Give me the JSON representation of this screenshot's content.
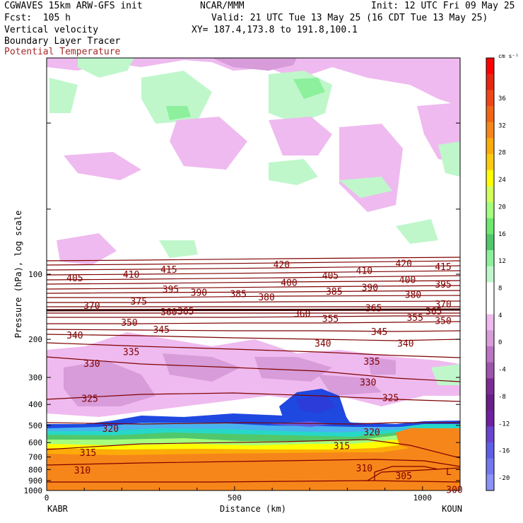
{
  "header": {
    "model": "CGWAVES 15km ARW-GFS init",
    "org": "NCAR/MMM",
    "init": "Init: 12 UTC Fri 09 May 25",
    "fcst": "Fcst:  105 h",
    "valid": "Valid: 21 UTC Tue 13 May 25 (16 CDT Tue 13 May 25)",
    "field1": "Vertical velocity",
    "xy": "XY= 187.4,173.8 to 191.8,100.1",
    "field2": "Boundary Layer Tracer",
    "field3": "Potential Temperature"
  },
  "chart_data": {
    "type": "contour cross-section",
    "ylabel": "Pressure (hPa), log scale",
    "xlabel": "Distance (km)",
    "x_ticks": [
      0,
      500,
      1000
    ],
    "xlim": [
      0,
      1100
    ],
    "y_ticks": [
      100,
      200,
      300,
      400,
      500,
      600,
      700,
      800,
      900,
      1000
    ],
    "ylim": [
      1000,
      10
    ],
    "y_scale": "log",
    "endpoints": {
      "left": "KABR",
      "right": "KOUN"
    },
    "colorbar": {
      "units": "cm s⁻¹",
      "ticks": [
        36,
        32,
        28,
        24,
        20,
        16,
        12,
        8,
        4,
        0,
        -4,
        -8,
        -12,
        -16,
        -20
      ],
      "colors": [
        "#ff0000",
        "#e8260f",
        "#f04616",
        "#f26515",
        "#f6861a",
        "#fdab08",
        "#fdcb0c",
        "#fefe00",
        "#d2ff5a",
        "#a5ff7d",
        "#6ee86d",
        "#51c86b",
        "#8cf09c",
        "#bff7cb",
        "#ffffff",
        "#ffffff",
        "#efbaef",
        "#d79cd9",
        "#bb75c4",
        "#9e54ad",
        "#7d2b94",
        "#6a1e88",
        "#7020a0",
        "#6a44d0",
        "#5e5ee8",
        "#7478f0",
        "#8c92f8"
      ]
    },
    "isentropes": [
      {
        "value": 300,
        "labels": [
          {
            "x": 1085,
            "p": 990
          }
        ]
      },
      {
        "value": 305,
        "labels": [
          {
            "x": 950,
            "p": 855
          }
        ]
      },
      {
        "value": 310,
        "labels": [
          {
            "x": 95,
            "p": 805
          },
          {
            "x": 845,
            "p": 785
          }
        ]
      },
      {
        "value": 315,
        "labels": [
          {
            "x": 110,
            "p": 665
          },
          {
            "x": 785,
            "p": 620
          }
        ]
      },
      {
        "value": 320,
        "labels": [
          {
            "x": 170,
            "p": 515
          },
          {
            "x": 865,
            "p": 535
          }
        ]
      },
      {
        "value": 325,
        "labels": [
          {
            "x": 115,
            "p": 375
          },
          {
            "x": 915,
            "p": 372
          }
        ]
      },
      {
        "value": 330,
        "labels": [
          {
            "x": 120,
            "p": 258
          },
          {
            "x": 855,
            "p": 315
          }
        ]
      },
      {
        "value": 335,
        "labels": [
          {
            "x": 225,
            "p": 228
          },
          {
            "x": 865,
            "p": 252
          }
        ]
      },
      {
        "value": 340,
        "labels": [
          {
            "x": 75,
            "p": 191
          },
          {
            "x": 735,
            "p": 208
          },
          {
            "x": 955,
            "p": 208
          }
        ]
      },
      {
        "value": 345,
        "labels": [
          {
            "x": 305,
            "p": 180
          },
          {
            "x": 885,
            "p": 184
          }
        ]
      },
      {
        "value": 350,
        "labels": [
          {
            "x": 220,
            "p": 167
          },
          {
            "x": 1055,
            "p": 164
          }
        ]
      },
      {
        "value": 355,
        "labels": [
          {
            "x": 755,
            "p": 160
          },
          {
            "x": 980,
            "p": 158
          }
        ]
      },
      {
        "value": 360,
        "labels": [
          {
            "x": 680,
            "p": 152
          }
        ]
      },
      {
        "value": 365,
        "labels": [
          {
            "x": 870,
            "p": 143
          }
        ]
      },
      {
        "value": 370,
        "labels": [
          {
            "x": 120,
            "p": 139
          },
          {
            "x": 1055,
            "p": 137
          }
        ]
      },
      {
        "value": 375,
        "labels": [
          {
            "x": 245,
            "p": 133
          }
        ]
      },
      {
        "value": 380,
        "labels": [
          {
            "x": 585,
            "p": 127
          },
          {
            "x": 975,
            "p": 124
          }
        ]
      },
      {
        "value": 385,
        "labels": [
          {
            "x": 510,
            "p": 123
          },
          {
            "x": 765,
            "p": 120
          }
        ]
      },
      {
        "value": 390,
        "labels": [
          {
            "x": 405,
            "p": 121
          },
          {
            "x": 860,
            "p": 115
          }
        ]
      },
      {
        "value": 395,
        "labels": [
          {
            "x": 330,
            "p": 117
          },
          {
            "x": 1055,
            "p": 111
          }
        ]
      },
      {
        "value": 400,
        "labels": [
          {
            "x": 645,
            "p": 109
          },
          {
            "x": 960,
            "p": 106
          }
        ]
      },
      {
        "value": 405,
        "labels": [
          {
            "x": 75,
            "p": 104
          },
          {
            "x": 755,
            "p": 101
          }
        ]
      },
      {
        "value": 410,
        "labels": [
          {
            "x": 225,
            "p": 100
          },
          {
            "x": 845,
            "p": 96
          }
        ]
      },
      {
        "value": 415,
        "labels": [
          {
            "x": 325,
            "p": 95
          },
          {
            "x": 1055,
            "p": 92
          }
        ]
      },
      {
        "value": 420,
        "labels": [
          {
            "x": 625,
            "p": 90
          },
          {
            "x": 950,
            "p": 89
          }
        ]
      },
      {
        "value": 360,
        "labels": [
          {
            "x": 325,
            "p": 149
          }
        ]
      },
      {
        "value": 365,
        "labels": [
          {
            "x": 370,
            "p": 148
          }
        ]
      },
      {
        "value": 365,
        "labels": [
          {
            "x": 1030,
            "p": 148
          }
        ]
      }
    ],
    "corner_mark": "L"
  }
}
